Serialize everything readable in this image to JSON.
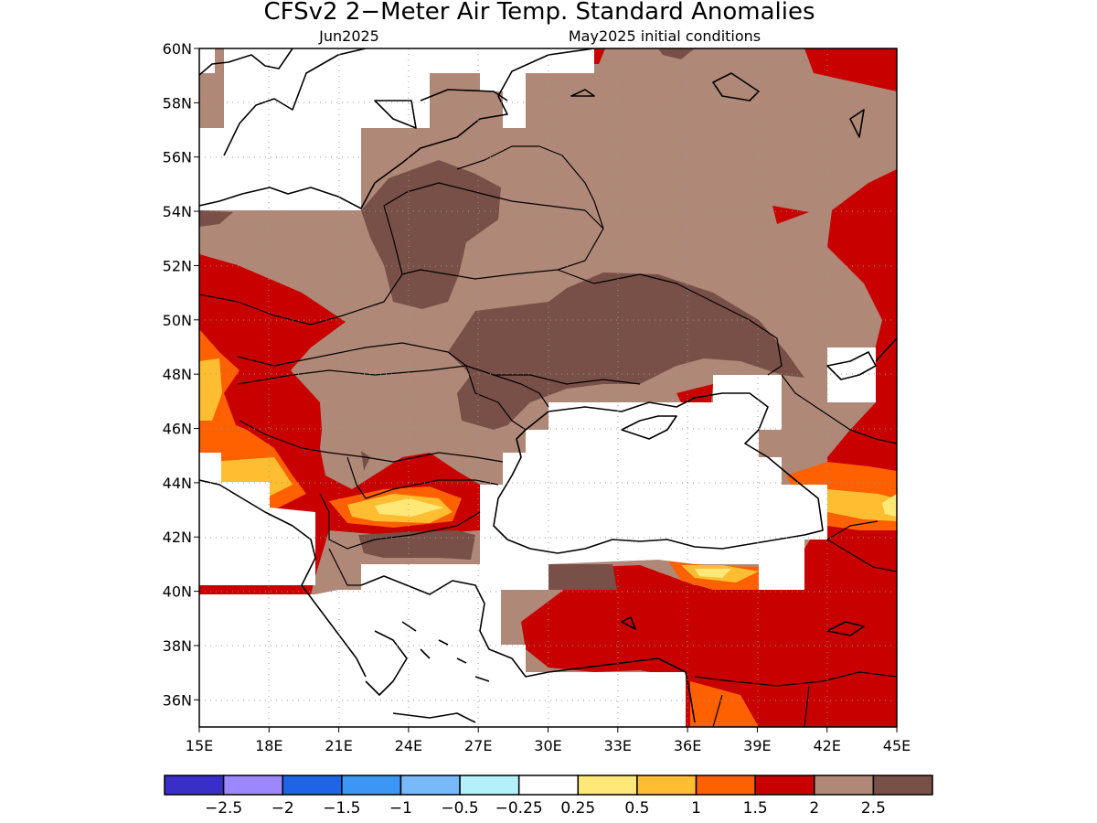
{
  "title": "CFSv2 2−Meter Air Temp. Standard Anomalies",
  "subtitle_left": "Jun2025",
  "subtitle_right": "May2025 initial conditions",
  "map": {
    "lon_min": 15,
    "lon_max": 45,
    "lat_min": 35,
    "lat_max": 60,
    "lat_ticks": [
      "60N",
      "58N",
      "56N",
      "54N",
      "52N",
      "50N",
      "48N",
      "46N",
      "44N",
      "42N",
      "40N",
      "38N",
      "36N"
    ],
    "lon_ticks": [
      "15E",
      "18E",
      "21E",
      "24E",
      "27E",
      "30E",
      "33E",
      "36E",
      "39E",
      "42E",
      "45E"
    ]
  },
  "colorbar": {
    "colors": [
      "#3a2ec8",
      "#9d87ff",
      "#1f64e6",
      "#3c96f5",
      "#78b9fa",
      "#b4f0fa",
      "#ffffff",
      "#ffe878",
      "#ffbe32",
      "#ff6000",
      "#c80000",
      "#b08878",
      "#785048"
    ],
    "labels": [
      "−2.5",
      "−2",
      "−1.5",
      "−1",
      "−0.5",
      "−0.25",
      "0.25",
      "0.5",
      "1",
      "1.5",
      "2",
      "2.5"
    ]
  }
}
